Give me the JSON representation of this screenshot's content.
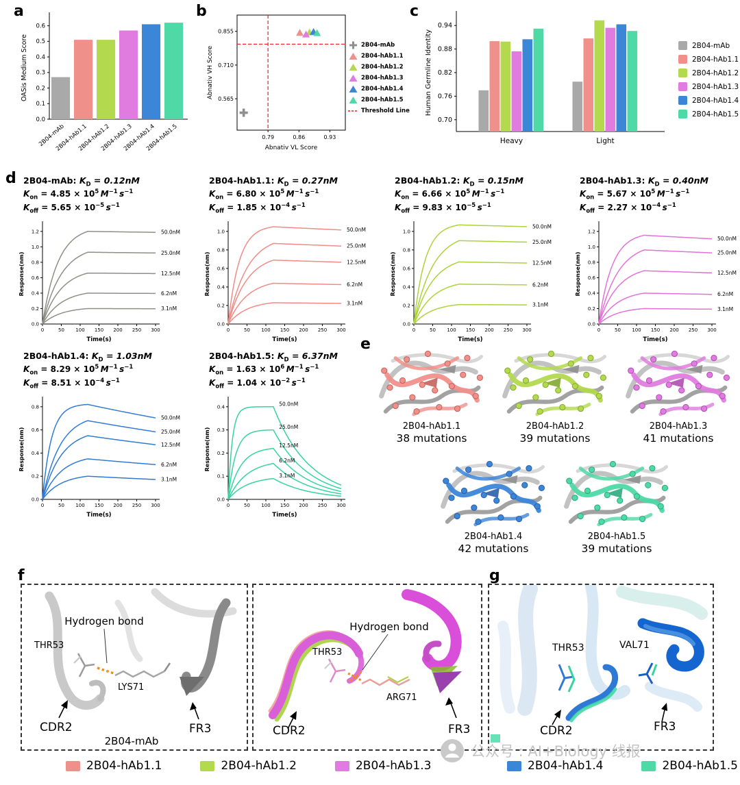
{
  "panels": {
    "a": "a",
    "b": "b",
    "c": "c",
    "d": "d",
    "e": "e",
    "f": "f",
    "g": "g"
  },
  "palette": {
    "gray": {
      "main": "#a9a9a9",
      "dark": "#7d7d7d"
    },
    "salmon": {
      "main": "#f0908a",
      "dark": "#c4625c"
    },
    "green": {
      "main": "#b3d94e",
      "dark": "#84a830"
    },
    "magenta": {
      "main": "#e07ce0",
      "dark": "#b04fb0"
    },
    "blue": {
      "main": "#3c86d8",
      "dark": "#2a5fa8"
    },
    "teal": {
      "main": "#4fd9a6",
      "dark": "#2fa87c"
    }
  },
  "chart_data": [
    {
      "id": "oasis",
      "type": "bar",
      "ylabel": "OASis Medium Score",
      "categories": [
        "2B04-mAb",
        "2B04-hAb1.1",
        "2B04-hAb1.2",
        "2B04-hAb1.3",
        "2B04-hAb1.4",
        "2B04-hAb1.5"
      ],
      "values": [
        0.27,
        0.51,
        0.51,
        0.57,
        0.61,
        0.62
      ],
      "colors": [
        "gray",
        "salmon",
        "green",
        "magenta",
        "blue",
        "teal"
      ],
      "yticks": [
        0.0,
        0.1,
        0.2,
        0.3,
        0.4,
        0.5,
        0.6
      ],
      "ylim": [
        0,
        0.66
      ]
    },
    {
      "id": "abnativ",
      "type": "scatter",
      "xlabel": "Abnativ VL Score",
      "ylabel": "Abnativ VH Score",
      "xticks": [
        0.79,
        0.86,
        0.93
      ],
      "yticks": [
        0.565,
        0.71,
        0.855
      ],
      "xlim": [
        0.72,
        0.965
      ],
      "ylim": [
        0.43,
        0.925
      ],
      "threshold": {
        "x": 0.79,
        "y": 0.8,
        "label": "Threshold Line",
        "color": "#e02020"
      },
      "points": [
        {
          "name": "2B04-mAb",
          "x": 0.735,
          "y": 0.505,
          "marker": "plus",
          "color": "gray"
        },
        {
          "name": "2B04-hAb1.1",
          "x": 0.862,
          "y": 0.849,
          "marker": "triangle",
          "color": "salmon"
        },
        {
          "name": "2B04-hAb1.2",
          "x": 0.884,
          "y": 0.851,
          "marker": "triangle",
          "color": "green"
        },
        {
          "name": "2B04-hAb1.3",
          "x": 0.876,
          "y": 0.842,
          "marker": "triangle",
          "color": "magenta"
        },
        {
          "name": "2B04-hAb1.4",
          "x": 0.893,
          "y": 0.853,
          "marker": "triangle",
          "color": "blue"
        },
        {
          "name": "2B04-hAb1.5",
          "x": 0.901,
          "y": 0.848,
          "marker": "triangle",
          "color": "teal"
        }
      ]
    },
    {
      "id": "germline",
      "type": "grouped-bar",
      "ylabel": "Human Germline Identity",
      "categories": [
        "Heavy",
        "Light"
      ],
      "series": [
        {
          "name": "2B04-mAb",
          "color": "gray",
          "values": [
            0.775,
            0.797
          ]
        },
        {
          "name": "2B04-hAb1.1",
          "color": "salmon",
          "values": [
            0.9,
            0.907
          ]
        },
        {
          "name": "2B04-hAb1.2",
          "color": "green",
          "values": [
            0.899,
            0.953
          ]
        },
        {
          "name": "2B04-hAb1.3",
          "color": "magenta",
          "values": [
            0.874,
            0.934
          ]
        },
        {
          "name": "2B04-hAb1.4",
          "color": "blue",
          "values": [
            0.905,
            0.943
          ]
        },
        {
          "name": "2B04-hAb1.5",
          "color": "teal",
          "values": [
            0.932,
            0.926
          ]
        }
      ],
      "yticks": [
        0.7,
        0.76,
        0.82,
        0.88,
        0.94
      ],
      "ylim": [
        0.67,
        0.97
      ]
    },
    {
      "id": "sensorgrams",
      "type": "line",
      "xlabel": "Time(s)",
      "ylabel": "Response(nm)",
      "xticks": [
        0,
        50,
        100,
        150,
        200,
        250,
        300
      ],
      "assoc_end_s": 120,
      "total_s": 300,
      "concentrations": [
        {
          "label": "50.0nM",
          "value": 50
        },
        {
          "label": "25.0nM",
          "value": 25
        },
        {
          "label": "12.5nM",
          "value": 12.5
        },
        {
          "label": "6.2nM",
          "value": 6.2
        },
        {
          "label": "3.1nM",
          "value": 3.1
        }
      ],
      "plots": [
        {
          "name": "2B04-mAb",
          "kd": "0.12nM",
          "kon": {
            "coef": "4.85",
            "exp": "5",
            "value": 485000
          },
          "koff": {
            "coef": "5.65",
            "exp": "−5",
            "value": 5.65e-05
          },
          "color": "gray",
          "line_color": "#8f8f85",
          "plateaus": [
            1.2,
            0.93,
            0.66,
            0.4,
            0.2
          ],
          "yticks": [
            0.0,
            0.2,
            0.4,
            0.6,
            0.8,
            1.0,
            1.2
          ],
          "label_mode": "end"
        },
        {
          "name": "2B04-hAb1.1",
          "kd": "0.27nM",
          "kon": {
            "coef": "6.80",
            "exp": "5",
            "value": 680000
          },
          "koff": {
            "coef": "1.85",
            "exp": "−4",
            "value": 0.000185
          },
          "color": "salmon",
          "line_color": "#f28b84",
          "plateaus": [
            1.05,
            0.87,
            0.69,
            0.44,
            0.23
          ],
          "yticks": [
            0.0,
            0.2,
            0.4,
            0.6,
            0.8,
            1.0
          ],
          "label_mode": "end"
        },
        {
          "name": "2B04-hAb1.2",
          "kd": "0.15nM",
          "kon": {
            "coef": "6.66",
            "exp": "5",
            "value": 666000
          },
          "koff": {
            "coef": "9.83",
            "exp": "−5",
            "value": 9.83e-05
          },
          "color": "green",
          "line_color": "#abd438",
          "plateaus": [
            1.07,
            0.9,
            0.67,
            0.43,
            0.21
          ],
          "yticks": [
            0.0,
            0.2,
            0.4,
            0.6,
            0.8,
            1.0
          ],
          "label_mode": "end"
        },
        {
          "name": "2B04-hAb1.3",
          "kd": "0.40nM",
          "kon": {
            "coef": "5.67",
            "exp": "5",
            "value": 567000
          },
          "koff": {
            "coef": "2.27",
            "exp": "−4",
            "value": 0.000227
          },
          "color": "magenta",
          "line_color": "#e272d8",
          "plateaus": [
            1.15,
            0.96,
            0.69,
            0.4,
            0.2
          ],
          "yticks": [
            0.0,
            0.2,
            0.4,
            0.6,
            0.8,
            1.0,
            1.2
          ],
          "label_mode": "end"
        },
        {
          "name": "2B04-hAb1.4",
          "kd": "1.03nM",
          "kon": {
            "coef": "8.29",
            "exp": "5",
            "value": 829000
          },
          "koff": {
            "coef": "8.51",
            "exp": "−4",
            "value": 0.000851
          },
          "color": "blue",
          "line_color": "#2f7bd4",
          "plateaus": [
            0.82,
            0.68,
            0.55,
            0.35,
            0.2
          ],
          "yticks": [
            0.0,
            0.2,
            0.4,
            0.6,
            0.8
          ],
          "label_mode": "end"
        },
        {
          "name": "2B04-hAb1.5",
          "kd": "6.37nM",
          "kon": {
            "coef": "1.63",
            "exp": "6",
            "value": 1630000
          },
          "koff": {
            "coef": "1.04",
            "exp": "−2",
            "value": 0.0104
          },
          "color": "teal",
          "line_color": "#35d4a0",
          "plateaus": [
            0.4,
            0.3,
            0.22,
            0.155,
            0.09
          ],
          "yticks": [
            0.0,
            0.1,
            0.2,
            0.3,
            0.4
          ],
          "label_mode": "peak"
        }
      ]
    }
  ],
  "kin_symbols": {
    "k": "K",
    "d_sub": "D",
    "on_sub": "on",
    "off_sub": "off",
    "colon": ": ",
    "eq": " = ",
    "times10": " × 10",
    "m_unit": "M",
    "s_unit": "s",
    "sup_minus1": "−1"
  },
  "panel_e": {
    "structures": [
      {
        "name": "2B04-hAb1.1",
        "mutations": "38 mutations",
        "color": "salmon"
      },
      {
        "name": "2B04-hAb1.2",
        "mutations": "39 mutations",
        "color": "green"
      },
      {
        "name": "2B04-hAb1.3",
        "mutations": "41 mutations",
        "color": "magenta"
      },
      {
        "name": "2B04-hAb1.4",
        "mutations": "42 mutations",
        "color": "blue"
      },
      {
        "name": "2B04-hAb1.5",
        "mutations": "39 mutations",
        "color": "teal"
      }
    ]
  },
  "panel_f": {
    "left": {
      "hydrogen_bond": "Hydrogen bond",
      "thr53": "THR53",
      "res71": "LYS71",
      "cdr2": "CDR2",
      "fr3": "FR3",
      "caption": "2B04-mAb"
    },
    "right": {
      "hydrogen_bond": "Hydrogen bond",
      "thr53": "THR53",
      "res71": "ARG71",
      "cdr2": "CDR2",
      "fr3": "FR3"
    }
  },
  "panel_g": {
    "thr53": "THR53",
    "res71": "VAL71",
    "cdr2": "CDR2",
    "fr3": "FR3"
  },
  "bottom_legend": [
    {
      "name": "2B04-hAb1.1",
      "color": "salmon"
    },
    {
      "name": "2B04-hAb1.2",
      "color": "green"
    },
    {
      "name": "2B04-hAb1.3",
      "color": "magenta"
    },
    {
      "name": "2B04-hAb1.4",
      "color": "blue"
    },
    {
      "name": "2B04-hAb1.5",
      "color": "teal"
    }
  ],
  "watermark": {
    "text": "公众号 : AI+Biology 线报"
  }
}
